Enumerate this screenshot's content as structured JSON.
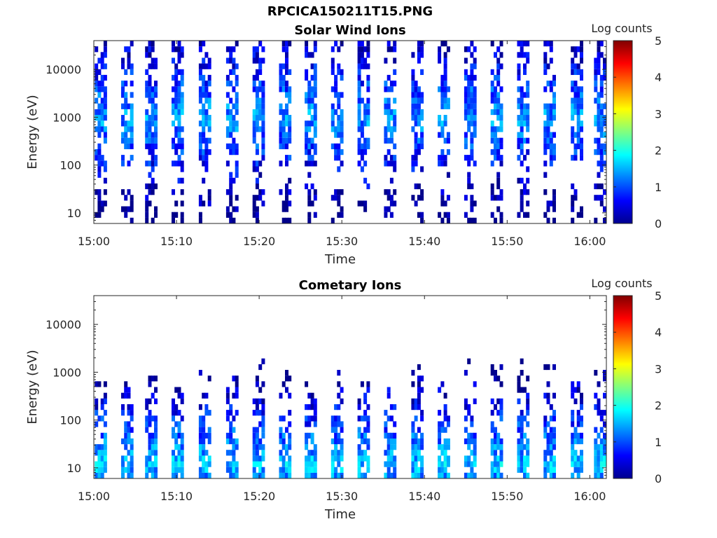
{
  "figure": {
    "title": "RPCICA150211T15.PNG"
  },
  "chart_data": [
    {
      "type": "heatmap",
      "title": "Solar Wind Ions",
      "xlabel": "Time",
      "ylabel": "Energy (eV)",
      "xticks": [
        "15:00",
        "15:10",
        "15:20",
        "15:30",
        "15:40",
        "15:50",
        "16:00"
      ],
      "xlim": [
        "15:00",
        "16:02"
      ],
      "yscale": "log",
      "yticks": [
        10,
        100,
        1000,
        10000
      ],
      "ylim": [
        6,
        40000
      ],
      "colorbar": {
        "label": "Log counts",
        "ticks": [
          0,
          1,
          2,
          3,
          4,
          5
        ],
        "range": [
          0,
          5
        ],
        "colormap": "jet"
      },
      "bursts_minutes": [
        0.6,
        3.8,
        6.7,
        9.9,
        13.2,
        16.5,
        19.7,
        22.9,
        26.0,
        29.2,
        32.4,
        35.6,
        38.9,
        42.1,
        45.3,
        48.5,
        51.7,
        54.9,
        58.2,
        61.0
      ],
      "bands": [
        {
          "emin": 6,
          "emax": 40000,
          "peak_log_counts": 1.8,
          "peak_energy_eV": 1000
        }
      ]
    },
    {
      "type": "heatmap",
      "title": "Cometary Ions",
      "xlabel": "Time",
      "ylabel": "Energy (eV)",
      "xticks": [
        "15:00",
        "15:10",
        "15:20",
        "15:30",
        "15:40",
        "15:50",
        "16:00"
      ],
      "xlim": [
        "15:00",
        "16:02"
      ],
      "yscale": "log",
      "yticks": [
        10,
        100,
        1000,
        10000
      ],
      "ylim": [
        6,
        40000
      ],
      "colorbar": {
        "label": "Log counts",
        "ticks": [
          0,
          1,
          2,
          3,
          4,
          5
        ],
        "range": [
          0,
          5
        ],
        "colormap": "jet"
      },
      "bursts_minutes": [
        0.6,
        3.8,
        6.7,
        9.9,
        13.2,
        16.5,
        19.7,
        22.9,
        26.0,
        29.2,
        32.4,
        35.6,
        38.9,
        42.1,
        45.3,
        48.5,
        51.7,
        54.9,
        58.2,
        61.0
      ],
      "bands": [
        {
          "emin": 6,
          "emax": 2500,
          "peak_log_counts": 2.0,
          "peak_energy_eV": 12
        }
      ]
    }
  ]
}
